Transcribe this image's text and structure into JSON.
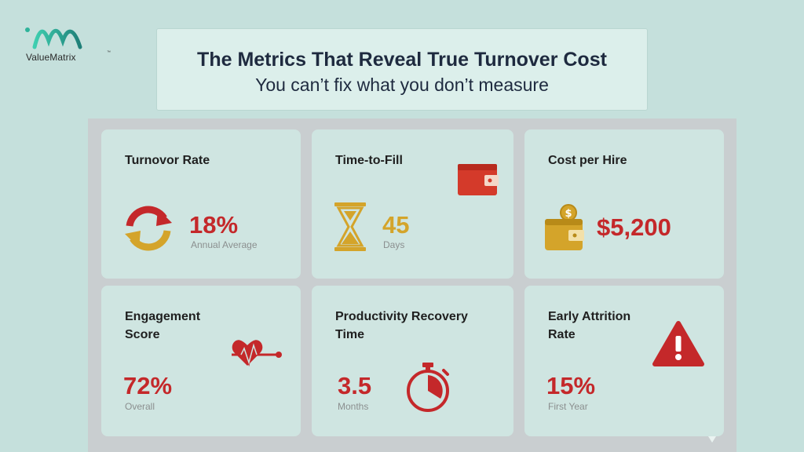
{
  "logo": {
    "name": "ValueMatrix",
    "tm": "™"
  },
  "header": {
    "title": "The Metrics That Reveal True Turnover Cost",
    "subtitle": "You can’t fix what you don’t measure"
  },
  "cards": [
    {
      "label": "Turnovor Rate",
      "value": "18%",
      "sub": "Annual Average",
      "icon": "refresh-arrows-icon"
    },
    {
      "label": "Time-to-Fill",
      "value": "45",
      "sub": "Days",
      "icon": "hourglass-icon"
    },
    {
      "label": "Cost per Hire",
      "value": "$5,200",
      "sub": "",
      "icon": "wallet-coin-icon"
    },
    {
      "label": "Engagement Score",
      "label_line1": "Engagement",
      "label_line2": "Score",
      "value": "72%",
      "sub": "Overall",
      "icon": "heartbeat-icon"
    },
    {
      "label": "Productivity Recovery Time",
      "label_line1": "Productivity Recovery",
      "label_line2": "Time",
      "value": "3.5",
      "sub": "Months",
      "icon": "stopwatch-icon"
    },
    {
      "label": "Early Attrition Rate",
      "label_line1": "Early Attrition",
      "label_line2": "Rate",
      "value": "15%",
      "sub": "First Year",
      "icon": "warning-icon"
    }
  ],
  "colors": {
    "background": "#c5e0dc",
    "card": "#cfe5e1",
    "accent_red": "#c4282a",
    "accent_gold": "#d4a42a",
    "title_text": "#1e2a3f"
  }
}
